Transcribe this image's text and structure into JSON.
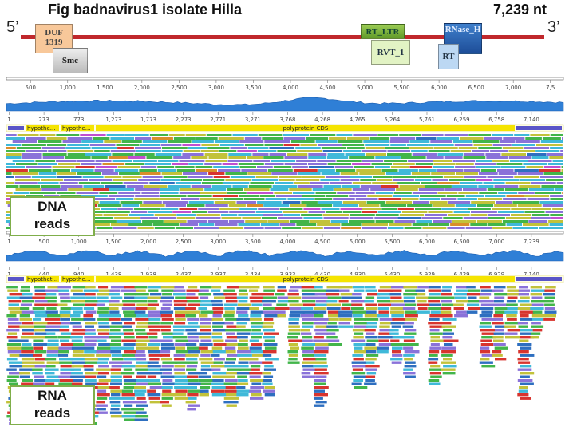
{
  "figure": {
    "title": "Fig badnavirus1 isolate Hilla",
    "genome_length": "7,239  nt",
    "five_prime": "5’",
    "three_prime": "3’"
  },
  "domains": {
    "duf": "DUF\n1319",
    "smc": "Smc",
    "rt_ltr": "RT_LTR",
    "rvt_1": "RVT_1",
    "rnase_h": "RNase_H",
    "rt": "RT"
  },
  "dna_panel": {
    "ruler_ticks": [
      "500",
      "1,000",
      "1,500",
      "2,000",
      "2,500",
      "3,000",
      "3,500",
      "4,000",
      "4,500",
      "5,000",
      "5,500",
      "6,000",
      "6,500",
      "7,000",
      "7,5"
    ],
    "track_ticks": [
      "1",
      "273",
      "773",
      "1,273",
      "1,773",
      "2,273",
      "2,771",
      "3,271",
      "3,768",
      "4,268",
      "4,765",
      "5,264",
      "5,761",
      "6,259",
      "6,758",
      "7,140"
    ],
    "annotations": [
      "hypothe...",
      "hypothe...",
      "polyprotein CDS"
    ],
    "bottom_ticks": [
      "1",
      "500",
      "1,000",
      "1,500",
      "2,000",
      "2,500",
      "3,000",
      "3,500",
      "4,000",
      "4,500",
      "5,000",
      "5,500",
      "6,000",
      "6,500",
      "7,000",
      "7,239"
    ],
    "label": "DNA\nreads"
  },
  "rna_panel": {
    "track_ticks": [
      "1",
      "440",
      "940",
      "1,438",
      "1,938",
      "2,437",
      "2,937",
      "3,434",
      "3,933",
      "4,430",
      "4,930",
      "5,430",
      "5,929",
      "6,429",
      "6,929",
      "7,140"
    ],
    "annotations": [
      "hypothet...",
      "hypothe...",
      "polyprotein CDS"
    ],
    "label": "RNA\nreads"
  },
  "colors": {
    "genome_line": "#c0282c",
    "coverage": "#2f7fd6",
    "cds": "#f5e400",
    "hypothetical": "#5a55c8",
    "reads": [
      "#3fb9d9",
      "#42b54a",
      "#c2c23a",
      "#8a72d9",
      "#d8342e",
      "#2e6fc0",
      "#d98e2a",
      "#c14fd0"
    ]
  }
}
